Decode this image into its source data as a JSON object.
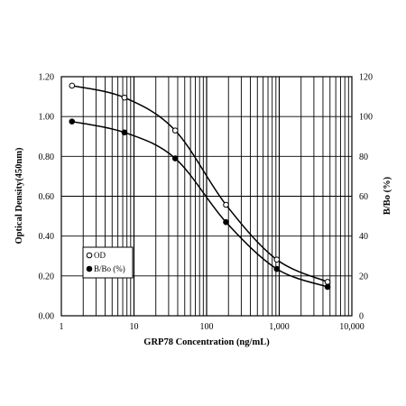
{
  "chart_data": {
    "type": "scatter",
    "xscale": "log",
    "xlim": [
      1,
      10000
    ],
    "ylim": [
      0,
      1.2
    ],
    "y2lim": [
      0,
      120
    ],
    "xlabel": "GRP78 Concentration  (ng/mL)",
    "ylabel": "Optical Density(450nm)",
    "y2label": "B/Bo (%)",
    "grid": true,
    "legend_position": "bottom-left",
    "x_tick_labels": [
      "1",
      "10",
      "100",
      "1,000",
      "10,000"
    ],
    "y_tick_labels": [
      "0.00",
      "0.20",
      "0.40",
      "0.60",
      "0.80",
      "1.00",
      "1.20"
    ],
    "y2_tick_labels": [
      "0",
      "20",
      "40",
      "60",
      "80",
      "100",
      "120"
    ],
    "series": [
      {
        "name": "OD",
        "axis": "left",
        "marker": "open-circle",
        "x": [
          1.4,
          7.4,
          37,
          185,
          926,
          4630
        ],
        "y": [
          1.155,
          1.095,
          0.93,
          0.557,
          0.282,
          0.17
        ]
      },
      {
        "name": "B/Bo (%)",
        "axis": "right",
        "marker": "filled-circle",
        "x": [
          1.4,
          7.4,
          37,
          185,
          926,
          4630
        ],
        "y": [
          97.5,
          92.0,
          79.0,
          47.0,
          23.5,
          14.5
        ]
      }
    ]
  }
}
